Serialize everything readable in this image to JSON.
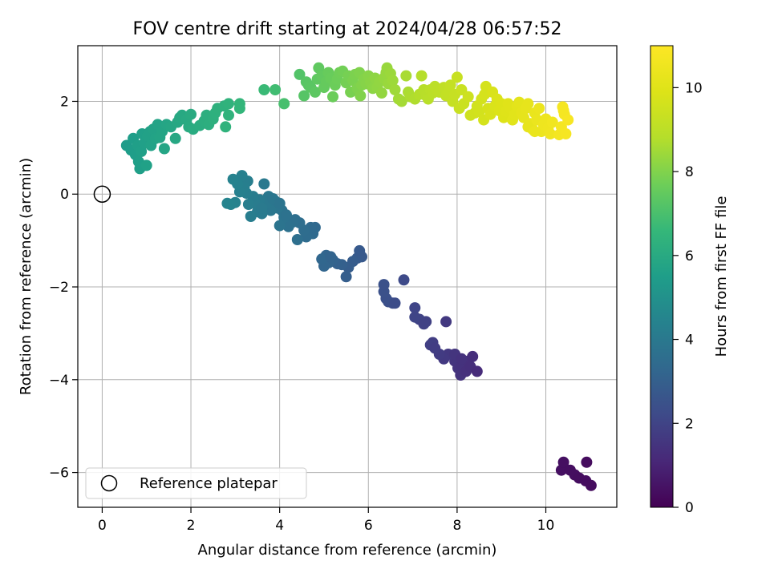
{
  "chart_data": {
    "type": "scatter",
    "title": "FOV centre drift starting at 2024/04/28 06:57:52",
    "xlabel": "Angular distance from reference (arcmin)",
    "ylabel": "Rotation from reference (arcmin)",
    "xlim": [
      -0.55,
      11.6
    ],
    "ylim": [
      -6.75,
      3.2
    ],
    "xticks": [
      0,
      2,
      4,
      6,
      8,
      10
    ],
    "xtick_labels": [
      "0",
      "2",
      "4",
      "6",
      "8",
      "10"
    ],
    "yticks": [
      -6,
      -4,
      -2,
      0,
      2
    ],
    "ytick_labels": [
      "−6",
      "−4",
      "−2",
      "0",
      "2"
    ],
    "grid": true,
    "legend": {
      "placement": "lower-left",
      "entries": [
        "Reference platepar"
      ]
    },
    "colorbar": {
      "label": "Hours from first FF file",
      "range": [
        0,
        11
      ],
      "ticks": [
        0,
        2,
        4,
        6,
        8,
        10
      ],
      "tick_labels": [
        "0",
        "2",
        "4",
        "6",
        "8",
        "10"
      ],
      "colormap": "viridis"
    },
    "reference_point": {
      "x": 0,
      "y": 0
    },
    "series": [
      {
        "columns": [
          "x",
          "y",
          "hours"
        ],
        "points": [
          [
            10.35,
            -5.95
          ],
          [
            10.4,
            -5.78
          ],
          [
            10.55,
            -5.95
          ],
          [
            10.65,
            -6.05
          ],
          [
            10.75,
            -6.12
          ],
          [
            10.9,
            -6.18
          ],
          [
            10.92,
            -5.78
          ],
          [
            11.02,
            -6.28
          ],
          [
            7.95,
            -3.6
          ],
          [
            8.02,
            -3.75
          ],
          [
            8.08,
            -3.9
          ],
          [
            8.1,
            -3.7
          ],
          [
            8.2,
            -3.82
          ],
          [
            8.25,
            -3.6
          ],
          [
            8.3,
            -3.72
          ],
          [
            8.35,
            -3.5
          ],
          [
            8.45,
            -3.82
          ],
          [
            7.8,
            -3.45
          ],
          [
            7.75,
            -2.75
          ],
          [
            7.7,
            -3.55
          ],
          [
            7.6,
            -3.45
          ],
          [
            7.95,
            -3.45
          ],
          [
            7.45,
            -3.2
          ],
          [
            7.4,
            -3.25
          ],
          [
            7.5,
            -3.32
          ],
          [
            8.1,
            -3.55
          ],
          [
            7.3,
            -2.75
          ],
          [
            7.15,
            -2.7
          ],
          [
            7.05,
            -2.65
          ],
          [
            7.05,
            -2.45
          ],
          [
            7.25,
            -2.8
          ],
          [
            6.8,
            -1.85
          ],
          [
            6.55,
            -2.35
          ],
          [
            6.45,
            -2.32
          ],
          [
            6.4,
            -2.25
          ],
          [
            6.35,
            -2.1
          ],
          [
            6.35,
            -1.95
          ],
          [
            6.6,
            -2.35
          ],
          [
            5.85,
            -1.35
          ],
          [
            5.75,
            -1.38
          ],
          [
            5.8,
            -1.22
          ],
          [
            5.65,
            -1.45
          ],
          [
            5.55,
            -1.58
          ],
          [
            5.5,
            -1.78
          ],
          [
            5.4,
            -1.52
          ],
          [
            5.3,
            -1.5
          ],
          [
            5.2,
            -1.42
          ],
          [
            5.1,
            -1.48
          ],
          [
            5.0,
            -1.55
          ],
          [
            5.05,
            -1.32
          ],
          [
            4.95,
            -1.4
          ],
          [
            5.15,
            -1.35
          ],
          [
            4.8,
            -0.72
          ],
          [
            4.75,
            -0.85
          ],
          [
            4.7,
            -0.72
          ],
          [
            4.6,
            -0.92
          ],
          [
            4.55,
            -0.78
          ],
          [
            4.45,
            -0.62
          ],
          [
            4.4,
            -0.98
          ],
          [
            4.35,
            -0.55
          ],
          [
            4.3,
            -0.6
          ],
          [
            4.2,
            -0.7
          ],
          [
            4.1,
            -0.5
          ],
          [
            4.0,
            -0.68
          ],
          [
            4.05,
            -0.35
          ],
          [
            4.15,
            -0.45
          ],
          [
            3.95,
            -0.3
          ],
          [
            3.9,
            -0.15
          ],
          [
            3.8,
            -0.35
          ],
          [
            3.75,
            -0.05
          ],
          [
            3.7,
            -0.2
          ],
          [
            3.65,
            0.22
          ],
          [
            3.6,
            -0.42
          ],
          [
            3.55,
            -0.12
          ],
          [
            3.5,
            -0.38
          ],
          [
            3.45,
            -0.2
          ],
          [
            3.4,
            -0.05
          ],
          [
            3.35,
            -0.48
          ],
          [
            3.3,
            -0.22
          ],
          [
            3.28,
            0.28
          ],
          [
            3.25,
            0.02
          ],
          [
            3.2,
            0.15
          ],
          [
            3.15,
            0.4
          ],
          [
            3.1,
            0.05
          ],
          [
            3.05,
            0.22
          ],
          [
            3.0,
            -0.18
          ],
          [
            2.95,
            0.32
          ],
          [
            2.9,
            -0.22
          ],
          [
            2.82,
            -0.2
          ],
          [
            3.6,
            -0.3
          ],
          [
            3.85,
            -0.1
          ],
          [
            4.0,
            -0.2
          ],
          [
            0.55,
            1.05
          ],
          [
            0.65,
            0.95
          ],
          [
            0.7,
            1.2
          ],
          [
            0.75,
            0.85
          ],
          [
            0.8,
            1.05
          ],
          [
            0.82,
            0.7
          ],
          [
            0.85,
            0.55
          ],
          [
            0.88,
            0.92
          ],
          [
            0.9,
            1.3
          ],
          [
            0.95,
            1.1
          ],
          [
            1.0,
            0.62
          ],
          [
            1.02,
            1.25
          ],
          [
            1.08,
            1.35
          ],
          [
            1.1,
            1.05
          ],
          [
            1.15,
            1.4
          ],
          [
            1.2,
            1.2
          ],
          [
            1.25,
            1.5
          ],
          [
            1.3,
            1.22
          ],
          [
            1.35,
            1.35
          ],
          [
            1.4,
            0.98
          ],
          [
            1.45,
            1.5
          ],
          [
            1.55,
            1.45
          ],
          [
            1.65,
            1.2
          ],
          [
            1.7,
            1.55
          ],
          [
            1.75,
            1.65
          ],
          [
            1.8,
            1.7
          ],
          [
            1.9,
            1.6
          ],
          [
            1.95,
            1.45
          ],
          [
            2.0,
            1.72
          ],
          [
            2.05,
            1.4
          ],
          [
            2.2,
            1.48
          ],
          [
            2.3,
            1.58
          ],
          [
            2.35,
            1.7
          ],
          [
            2.4,
            1.5
          ],
          [
            2.5,
            1.62
          ],
          [
            2.55,
            1.75
          ],
          [
            2.6,
            1.85
          ],
          [
            2.75,
            1.9
          ],
          [
            2.78,
            1.45
          ],
          [
            2.85,
            1.7
          ],
          [
            2.85,
            1.95
          ],
          [
            3.1,
            1.95
          ],
          [
            3.1,
            1.85
          ],
          [
            3.65,
            2.25
          ],
          [
            3.9,
            2.25
          ],
          [
            4.1,
            1.95
          ],
          [
            4.45,
            2.58
          ],
          [
            4.55,
            2.12
          ],
          [
            4.6,
            2.42
          ],
          [
            4.65,
            2.35
          ],
          [
            4.7,
            2.3
          ],
          [
            4.8,
            2.2
          ],
          [
            4.85,
            2.48
          ],
          [
            4.88,
            2.72
          ],
          [
            4.95,
            2.55
          ],
          [
            5.0,
            2.3
          ],
          [
            5.05,
            2.42
          ],
          [
            5.1,
            2.62
          ],
          [
            5.15,
            2.5
          ],
          [
            5.2,
            2.1
          ],
          [
            5.25,
            2.35
          ],
          [
            5.3,
            2.48
          ],
          [
            5.35,
            2.62
          ],
          [
            5.42,
            2.65
          ],
          [
            5.5,
            2.4
          ],
          [
            5.55,
            2.55
          ],
          [
            5.6,
            2.2
          ],
          [
            5.65,
            2.45
          ],
          [
            5.7,
            2.58
          ],
          [
            5.75,
            2.28
          ],
          [
            5.8,
            2.62
          ],
          [
            5.82,
            2.12
          ],
          [
            5.85,
            2.35
          ],
          [
            5.9,
            2.48
          ],
          [
            5.95,
            2.38
          ],
          [
            6.0,
            2.55
          ],
          [
            6.05,
            2.42
          ],
          [
            6.1,
            2.28
          ],
          [
            6.15,
            2.5
          ],
          [
            6.2,
            2.3
          ],
          [
            6.25,
            2.42
          ],
          [
            6.3,
            2.18
          ],
          [
            6.35,
            2.5
          ],
          [
            6.4,
            2.62
          ],
          [
            6.42,
            2.72
          ],
          [
            6.45,
            2.38
          ],
          [
            6.5,
            2.6
          ],
          [
            6.55,
            2.45
          ],
          [
            6.6,
            2.25
          ],
          [
            6.68,
            2.05
          ],
          [
            6.75,
            2.0
          ],
          [
            6.85,
            2.55
          ],
          [
            6.9,
            2.2
          ],
          [
            6.95,
            2.1
          ],
          [
            7.05,
            2.05
          ],
          [
            7.15,
            2.15
          ],
          [
            7.2,
            2.55
          ],
          [
            7.25,
            2.25
          ],
          [
            7.3,
            2.12
          ],
          [
            7.35,
            2.05
          ],
          [
            7.4,
            2.25
          ],
          [
            7.45,
            2.18
          ],
          [
            7.5,
            2.32
          ],
          [
            7.55,
            2.25
          ],
          [
            7.6,
            2.2
          ],
          [
            7.7,
            2.3
          ],
          [
            7.75,
            2.12
          ],
          [
            7.8,
            2.2
          ],
          [
            7.85,
            2.35
          ],
          [
            7.9,
            2.0
          ],
          [
            7.95,
            2.15
          ],
          [
            8.0,
            2.52
          ],
          [
            8.05,
            1.85
          ],
          [
            8.1,
            2.25
          ],
          [
            8.15,
            1.95
          ],
          [
            8.25,
            2.1
          ],
          [
            8.3,
            1.7
          ],
          [
            8.4,
            1.75
          ],
          [
            8.45,
            1.9
          ],
          [
            8.5,
            1.78
          ],
          [
            8.55,
            2.05
          ],
          [
            8.6,
            1.6
          ],
          [
            8.62,
            2.15
          ],
          [
            8.65,
            2.32
          ],
          [
            8.7,
            1.85
          ],
          [
            8.75,
            1.72
          ],
          [
            8.8,
            2.2
          ],
          [
            8.85,
            1.9
          ],
          [
            8.9,
            2.05
          ],
          [
            8.95,
            1.8
          ],
          [
            9.0,
            1.95
          ],
          [
            9.05,
            1.65
          ],
          [
            9.1,
            1.78
          ],
          [
            9.15,
            1.95
          ],
          [
            9.2,
            1.85
          ],
          [
            9.25,
            1.6
          ],
          [
            9.3,
            1.72
          ],
          [
            9.35,
            1.9
          ],
          [
            9.4,
            1.98
          ],
          [
            9.45,
            1.75
          ],
          [
            9.5,
            1.65
          ],
          [
            9.55,
            1.85
          ],
          [
            9.6,
            1.95
          ],
          [
            9.65,
            1.52
          ],
          [
            9.7,
            1.4
          ],
          [
            9.75,
            1.75
          ],
          [
            9.8,
            1.6
          ],
          [
            9.85,
            1.85
          ],
          [
            9.9,
            1.35
          ],
          [
            9.95,
            1.5
          ],
          [
            10.0,
            1.62
          ],
          [
            10.05,
            1.42
          ],
          [
            10.1,
            1.3
          ],
          [
            10.15,
            1.55
          ],
          [
            10.3,
            1.28
          ],
          [
            10.35,
            1.45
          ],
          [
            10.38,
            1.88
          ],
          [
            10.42,
            1.72
          ],
          [
            10.45,
            1.3
          ],
          [
            10.5,
            1.6
          ],
          [
            10.4,
            1.8
          ],
          [
            9.6,
            1.45
          ],
          [
            9.75,
            1.35
          ]
        ]
      }
    ]
  }
}
